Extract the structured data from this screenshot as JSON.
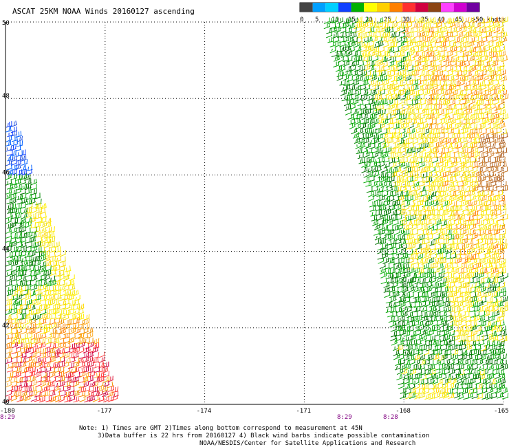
{
  "chart_data": {
    "type": "wind-barb map",
    "title": "ASCAT 25KM NOAA Winds 20160127 ascending",
    "lon_min": -180,
    "lon_max": -165,
    "lat_min": 40,
    "lat_max": 50,
    "x_ticks": [
      "-180",
      "-177",
      "-174",
      "-171",
      "-168",
      "-165"
    ],
    "x_tick_values": [
      -180,
      -177,
      -174,
      -171,
      -168,
      -165
    ],
    "y_ticks": [
      "40",
      "42",
      "44",
      "46",
      "48",
      "50"
    ],
    "y_tick_values": [
      40,
      42,
      44,
      46,
      48,
      50
    ],
    "grid": true,
    "legend": {
      "placement": "top-right",
      "bins": [
        {
          "label": "0",
          "color": "#444444"
        },
        {
          "label": "5",
          "color": "#00a0ff"
        },
        {
          "label": "10",
          "color": "#00d0ff"
        },
        {
          "label": "15",
          "color": "#1040ff"
        },
        {
          "label": "20",
          "color": "#00b000"
        },
        {
          "label": "",
          "color": "#ffff00"
        },
        {
          "label": "25",
          "color": "#ffd000"
        },
        {
          "label": "",
          "color": "#ff8000"
        },
        {
          "label": "30",
          "color": "#ff3030"
        },
        {
          "label": "35",
          "color": "#d00040"
        },
        {
          "label": "",
          "color": "#8b4513"
        },
        {
          "label": "40",
          "color": "#ff40ff"
        },
        {
          "label": "45",
          "color": "#d000d0"
        },
        {
          "label": ">50 knots",
          "color": "#7000a0"
        }
      ]
    },
    "time_labels": [
      {
        "text": "8:29",
        "lon": -180
      },
      {
        "text": "8:29",
        "lon": -170
      },
      {
        "text": "8:28",
        "lon": -168
      }
    ],
    "swaths": [
      {
        "name": "west swath",
        "lon_range": [
          -180,
          -176.8
        ],
        "lat_range": [
          40,
          47.5
        ]
      },
      {
        "name": "east swath",
        "lon_range": [
          -171,
          -165
        ],
        "lat_range": [
          40,
          50
        ]
      }
    ],
    "notes": [
      "Note: 1) Times are GMT 2)Times along bottom correspond to measurement at 45N",
      "3)Data buffer is 22 hrs from 20160127 4) Black wind barbs indicate possible contamination",
      "NOAA/NESDIS/Center for Satellite Applications and Research"
    ]
  }
}
